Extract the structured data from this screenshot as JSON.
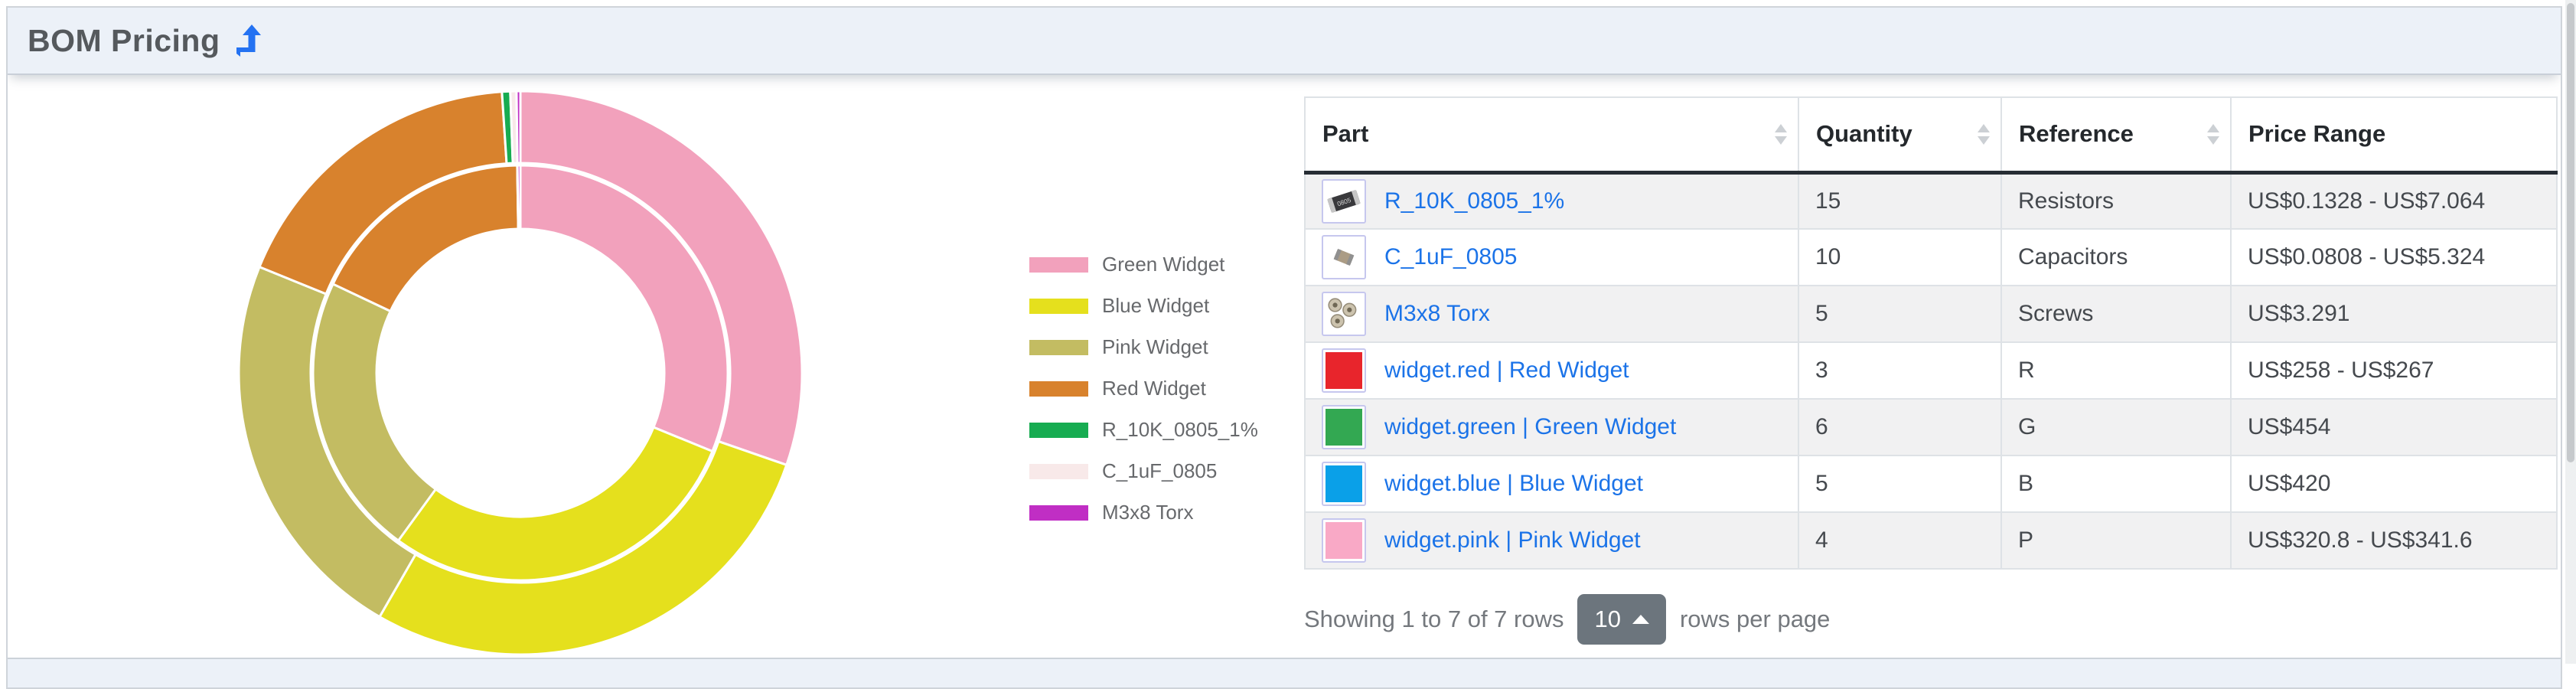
{
  "panel": {
    "title": "BOM Pricing",
    "title_icon": "level-up-arrow"
  },
  "chart_data": {
    "type": "pie",
    "subtype": "nested-double-ring-donut",
    "title": "BOM Pricing",
    "categories": [
      "Green Widget",
      "Blue Widget",
      "Pink Widget",
      "Red Widget",
      "R_10K_0805_1%",
      "C_1uF_0805",
      "M3x8 Torx"
    ],
    "series": [
      {
        "name": "max-total-price-outer-ring",
        "values": [
          454,
          420,
          341.6,
          267,
          7.064,
          5.324,
          3.291
        ]
      },
      {
        "name": "min-total-price-inner-ring",
        "values": [
          454,
          420,
          320.8,
          258,
          0.1328,
          0.0808,
          3.291
        ]
      }
    ],
    "colors": [
      "#f2a1bc",
      "#e5e01d",
      "#c3bc62",
      "#d8822d",
      "#17ac51",
      "#f8e9e9",
      "#c02ec4"
    ],
    "legend_position": "right",
    "start_angle": "12 o'clock",
    "direction": "clockwise",
    "hole": true
  },
  "table": {
    "columns": [
      {
        "label": "Part",
        "sortable": true
      },
      {
        "label": "Quantity",
        "sortable": true
      },
      {
        "label": "Reference",
        "sortable": true
      },
      {
        "label": "Price Range",
        "sortable": false
      }
    ],
    "rows": [
      {
        "thumb": "resistor-photo",
        "part": "R_10K_0805_1%",
        "quantity": "15",
        "reference": "Resistors",
        "price_range": "US$0.1328 - US$7.064"
      },
      {
        "thumb": "capacitor-photo",
        "part": "C_1uF_0805",
        "quantity": "10",
        "reference": "Capacitors",
        "price_range": "US$0.0808 - US$5.324"
      },
      {
        "thumb": "screws-photo",
        "part": "M3x8 Torx",
        "quantity": "5",
        "reference": "Screws",
        "price_range": "US$3.291"
      },
      {
        "thumb": "swatch-red",
        "part": "widget.red | Red Widget",
        "quantity": "3",
        "reference": "R",
        "price_range": "US$258 - US$267"
      },
      {
        "thumb": "swatch-green",
        "part": "widget.green | Green Widget",
        "quantity": "6",
        "reference": "G",
        "price_range": "US$454"
      },
      {
        "thumb": "swatch-blue",
        "part": "widget.blue | Blue Widget",
        "quantity": "5",
        "reference": "B",
        "price_range": "US$420"
      },
      {
        "thumb": "swatch-pink",
        "part": "widget.pink | Pink Widget",
        "quantity": "4",
        "reference": "P",
        "price_range": "US$320.8 - US$341.6"
      }
    ],
    "footer": {
      "summary": "Showing 1 to 7 of 7 rows",
      "page_size": "10",
      "page_size_suffix": "rows per page"
    }
  },
  "swatch_colors": {
    "swatch-red": "#e8252c",
    "swatch-green": "#33a852",
    "swatch-blue": "#0aa0e8",
    "swatch-pink": "#f9a9c6"
  },
  "icons": {
    "title_icon": "level-up-arrow",
    "sort_icon": "up-down-carets",
    "page_size_caret": "caret-up"
  },
  "ui_colors": {
    "header_band": "#ecf1f8",
    "link": "#1b73e8",
    "accent_arrow": "#2472f2",
    "stripe_row": "#f1f1f2",
    "page_size_button": "#6c757d"
  }
}
